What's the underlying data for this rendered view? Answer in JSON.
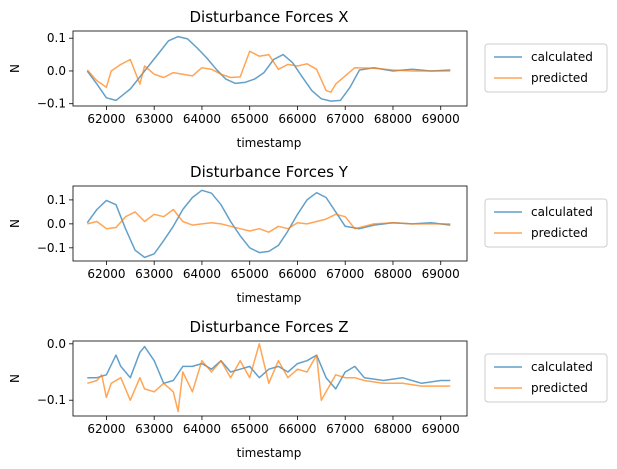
{
  "colors": {
    "calculated": "#1f77b4",
    "predicted": "#ff7f0e",
    "legend_edge": "#cccccc"
  },
  "chart_data": [
    {
      "type": "line",
      "title": "Disturbance Forces X",
      "xlabel": "timestamp",
      "ylabel": "N",
      "xlim": [
        61300,
        69550
      ],
      "ylim": [
        -0.107,
        0.122
      ],
      "xticks": [
        62000,
        63000,
        64000,
        65000,
        66000,
        67000,
        68000,
        69000
      ],
      "xtick_labels": [
        "62000",
        "63000",
        "64000",
        "65000",
        "66000",
        "67000",
        "68000",
        "69000"
      ],
      "yticks": [
        -0.1,
        0.0,
        0.1
      ],
      "ytick_labels": [
        "−0.1",
        "0.0",
        "0.1"
      ],
      "legend": "right",
      "series": [
        {
          "name": "calculated",
          "x": [
            61600,
            61800,
            62000,
            62200,
            62500,
            62800,
            63100,
            63300,
            63500,
            63700,
            63900,
            64100,
            64300,
            64500,
            64700,
            64900,
            65100,
            65300,
            65500,
            65700,
            65900,
            66100,
            66300,
            66500,
            66700,
            66900,
            67100,
            67300,
            67600,
            68000,
            68400,
            68800,
            69200
          ],
          "values": [
            0.0,
            -0.04,
            -0.082,
            -0.09,
            -0.055,
            0.0,
            0.055,
            0.092,
            0.105,
            0.098,
            0.07,
            0.04,
            0.005,
            -0.025,
            -0.038,
            -0.035,
            -0.025,
            -0.005,
            0.035,
            0.05,
            0.025,
            -0.018,
            -0.06,
            -0.085,
            -0.092,
            -0.09,
            -0.05,
            0.003,
            0.01,
            0.0,
            0.005,
            0.0,
            0.003
          ]
        },
        {
          "name": "predicted",
          "x": [
            61600,
            61800,
            62000,
            62100,
            62300,
            62500,
            62700,
            62800,
            63000,
            63200,
            63400,
            63600,
            63800,
            64000,
            64200,
            64400,
            64600,
            64800,
            65000,
            65200,
            65400,
            65600,
            65800,
            66000,
            66200,
            66400,
            66600,
            66700,
            66800,
            67000,
            67200,
            67600,
            68000,
            68400,
            68800,
            69200
          ],
          "values": [
            0.003,
            -0.03,
            -0.05,
            0.0,
            0.02,
            0.035,
            -0.04,
            0.015,
            -0.01,
            -0.02,
            -0.005,
            -0.01,
            -0.015,
            0.01,
            0.005,
            -0.01,
            -0.02,
            -0.018,
            0.06,
            0.045,
            0.05,
            0.005,
            0.02,
            0.015,
            0.022,
            0.005,
            -0.06,
            -0.065,
            -0.04,
            -0.015,
            0.01,
            0.008,
            0.003,
            0.0,
            0.0,
            0.0
          ]
        }
      ]
    },
    {
      "type": "line",
      "title": "Disturbance Forces Y",
      "xlabel": "timestamp",
      "ylabel": "N",
      "xlim": [
        61300,
        69550
      ],
      "ylim": [
        -0.155,
        0.158
      ],
      "xticks": [
        62000,
        63000,
        64000,
        65000,
        66000,
        67000,
        68000,
        69000
      ],
      "xtick_labels": [
        "62000",
        "63000",
        "64000",
        "65000",
        "66000",
        "67000",
        "68000",
        "69000"
      ],
      "yticks": [
        -0.1,
        0.0,
        0.1
      ],
      "ytick_labels": [
        "−0.1",
        "0.0",
        "0.1"
      ],
      "legend": "right",
      "series": [
        {
          "name": "calculated",
          "x": [
            61600,
            61800,
            62000,
            62200,
            62400,
            62600,
            62800,
            63000,
            63200,
            63400,
            63600,
            63800,
            64000,
            64200,
            64400,
            64600,
            64800,
            65000,
            65200,
            65400,
            65600,
            65800,
            66000,
            66200,
            66400,
            66600,
            66800,
            67000,
            67300,
            67600,
            68000,
            68400,
            68800,
            69200
          ],
          "values": [
            0.005,
            0.06,
            0.098,
            0.08,
            -0.02,
            -0.11,
            -0.14,
            -0.125,
            -0.07,
            -0.01,
            0.06,
            0.11,
            0.14,
            0.128,
            0.08,
            0.01,
            -0.05,
            -0.1,
            -0.12,
            -0.115,
            -0.09,
            -0.03,
            0.04,
            0.1,
            0.13,
            0.11,
            0.05,
            -0.01,
            -0.02,
            -0.005,
            0.005,
            0.0,
            0.005,
            -0.005
          ]
        },
        {
          "name": "predicted",
          "x": [
            61600,
            61800,
            62000,
            62200,
            62400,
            62600,
            62800,
            63000,
            63200,
            63400,
            63600,
            63800,
            64000,
            64200,
            64400,
            64600,
            64800,
            65000,
            65200,
            65400,
            65600,
            65800,
            66000,
            66200,
            66400,
            66600,
            66800,
            67000,
            67200,
            67600,
            68000,
            68400,
            68800,
            69200
          ],
          "values": [
            0.0,
            0.01,
            -0.02,
            -0.015,
            0.03,
            0.05,
            0.01,
            0.04,
            0.03,
            0.06,
            0.01,
            -0.005,
            0.0,
            0.005,
            0.0,
            -0.01,
            -0.02,
            -0.03,
            -0.02,
            -0.035,
            -0.01,
            -0.02,
            0.005,
            0.0,
            0.01,
            0.02,
            0.04,
            0.03,
            -0.02,
            0.0,
            0.005,
            0.0,
            0.0,
            0.0
          ]
        }
      ]
    },
    {
      "type": "line",
      "title": "Disturbance Forces Z",
      "xlabel": "timestamp",
      "ylabel": "N",
      "xlim": [
        61300,
        69550
      ],
      "ylim": [
        -0.128,
        0.005
      ],
      "xticks": [
        62000,
        63000,
        64000,
        65000,
        66000,
        67000,
        68000,
        69000
      ],
      "xtick_labels": [
        "62000",
        "63000",
        "64000",
        "65000",
        "66000",
        "67000",
        "68000",
        "69000"
      ],
      "yticks": [
        -0.1,
        0.0
      ],
      "ytick_labels": [
        "−0.1",
        "0.0"
      ],
      "legend": "right",
      "series": [
        {
          "name": "calculated",
          "x": [
            61600,
            61800,
            62000,
            62200,
            62300,
            62500,
            62700,
            62800,
            63000,
            63200,
            63400,
            63600,
            63800,
            64000,
            64200,
            64400,
            64600,
            64800,
            65000,
            65200,
            65400,
            65600,
            65800,
            66000,
            66200,
            66400,
            66600,
            66800,
            67000,
            67200,
            67400,
            67800,
            68200,
            68600,
            69000,
            69200
          ],
          "values": [
            -0.06,
            -0.06,
            -0.055,
            -0.02,
            -0.04,
            -0.06,
            -0.015,
            -0.005,
            -0.03,
            -0.07,
            -0.065,
            -0.04,
            -0.04,
            -0.035,
            -0.045,
            -0.03,
            -0.05,
            -0.045,
            -0.04,
            -0.06,
            -0.045,
            -0.04,
            -0.05,
            -0.035,
            -0.03,
            -0.02,
            -0.06,
            -0.08,
            -0.05,
            -0.04,
            -0.06,
            -0.065,
            -0.06,
            -0.07,
            -0.065,
            -0.065
          ]
        },
        {
          "name": "predicted",
          "x": [
            61600,
            61800,
            61900,
            62000,
            62100,
            62300,
            62500,
            62700,
            62800,
            63000,
            63200,
            63400,
            63500,
            63600,
            63800,
            64000,
            64200,
            64400,
            64600,
            64800,
            65000,
            65100,
            65200,
            65400,
            65600,
            65800,
            66000,
            66200,
            66400,
            66500,
            66600,
            66700,
            66800,
            67000,
            67200,
            67400,
            67800,
            68200,
            68600,
            69000,
            69200
          ],
          "values": [
            -0.07,
            -0.065,
            -0.055,
            -0.095,
            -0.07,
            -0.06,
            -0.1,
            -0.06,
            -0.08,
            -0.085,
            -0.07,
            -0.085,
            -0.12,
            -0.05,
            -0.085,
            -0.03,
            -0.05,
            -0.03,
            -0.06,
            -0.03,
            -0.06,
            -0.03,
            0.0,
            -0.07,
            -0.03,
            -0.06,
            -0.045,
            -0.05,
            -0.02,
            -0.1,
            -0.085,
            -0.07,
            -0.055,
            -0.06,
            -0.06,
            -0.065,
            -0.07,
            -0.07,
            -0.075,
            -0.075,
            -0.075
          ]
        }
      ]
    }
  ]
}
